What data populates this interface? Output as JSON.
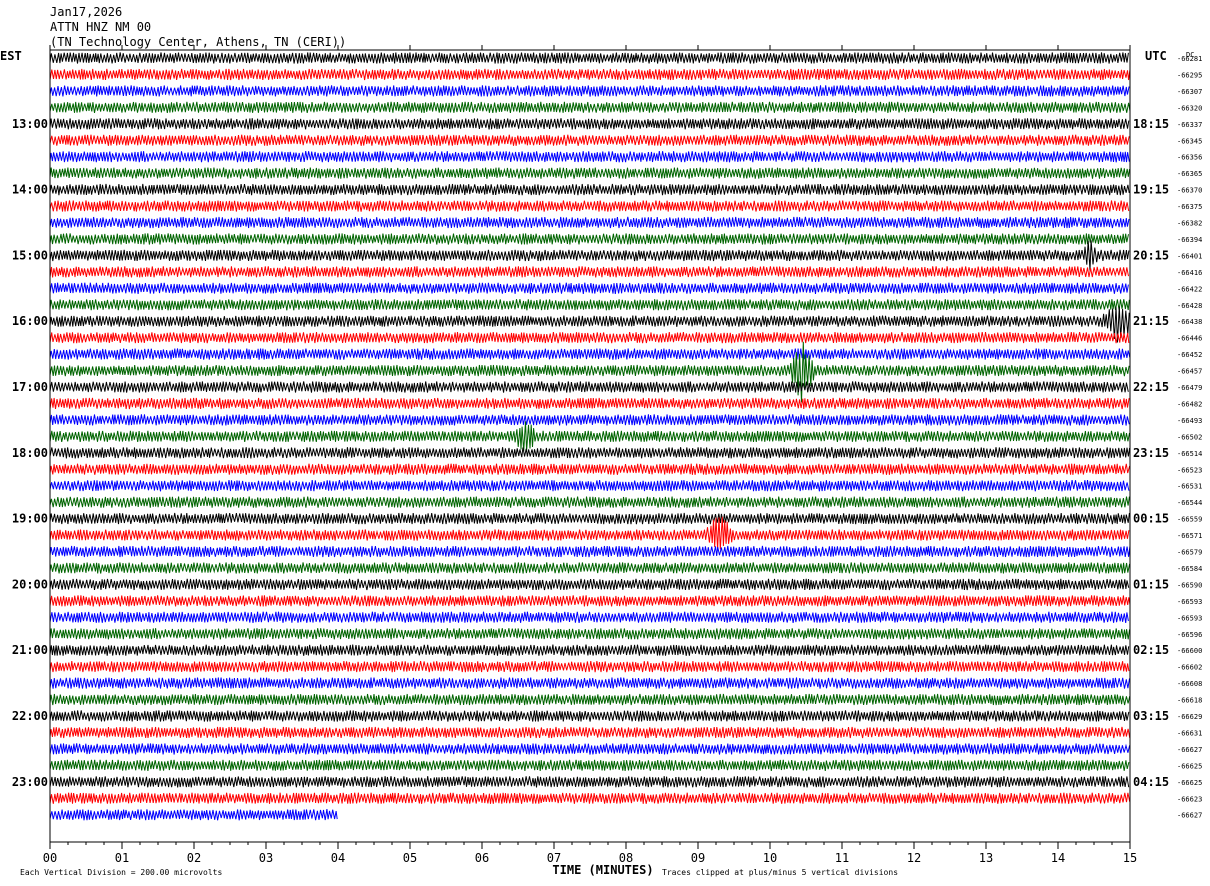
{
  "header": {
    "date": "Jan17,2026",
    "station": "ATTN HNZ NM 00",
    "location": "(TN Technology Center, Athens, TN (CERI))"
  },
  "chart_data": {
    "type": "line",
    "left_tz": "EST",
    "right_tz": "UTC",
    "dc_label": "DC",
    "xlabel": "TIME (MINUTES)",
    "xlim": [
      0,
      15
    ],
    "x_ticks": [
      "00",
      "01",
      "02",
      "03",
      "04",
      "05",
      "06",
      "07",
      "08",
      "09",
      "10",
      "11",
      "12",
      "13",
      "14",
      "15"
    ],
    "left_hour_labels": [
      "13:00",
      "14:00",
      "15:00",
      "16:00",
      "17:00",
      "18:00",
      "19:00",
      "20:00",
      "21:00",
      "22:00",
      "23:00"
    ],
    "right_hour_labels": [
      "18:15",
      "19:15",
      "20:15",
      "21:15",
      "22:15",
      "23:15",
      "00:15",
      "01:15",
      "02:15",
      "03:15",
      "04:15"
    ],
    "trace_colors": [
      "#000000",
      "#ff0000",
      "#0000ff",
      "#006400"
    ],
    "dc_offsets": [
      "-66281",
      "-66295",
      "-66307",
      "-66320",
      "-66337",
      "-66345",
      "-66356",
      "-66365",
      "-66370",
      "-66375",
      "-66382",
      "-66394",
      "-66401",
      "-66416",
      "-66422",
      "-66428",
      "-66438",
      "-66446",
      "-66452",
      "-66457",
      "-66479",
      "-66482",
      "-66493",
      "-66502",
      "-66514",
      "-66523",
      "-66531",
      "-66544",
      "-66559",
      "-66571",
      "-66579",
      "-66584",
      "-66590",
      "-66593",
      "-66593",
      "-66596",
      "-66600",
      "-66602",
      "-66608",
      "-66618",
      "-66629",
      "-66631",
      "-66627",
      "-66625",
      "-66625",
      "-66623",
      "-66627"
    ],
    "last_trace_end_minute": 4.0,
    "events": [
      {
        "trace": 19,
        "minute": 10.45,
        "amp": 2.6,
        "width": 0.18
      },
      {
        "trace": 16,
        "minute": 14.85,
        "amp": 1.6,
        "width": 0.25
      },
      {
        "trace": 23,
        "minute": 6.6,
        "amp": 1.4,
        "width": 0.15
      },
      {
        "trace": 29,
        "minute": 9.3,
        "amp": 1.5,
        "width": 0.2
      },
      {
        "trace": 12,
        "minute": 14.45,
        "amp": 1.3,
        "width": 0.1
      }
    ],
    "footer_left": "Each Vertical Division =  200.00 microvolts",
    "footer_right": "Traces clipped at plus/minus 5 vertical divisions"
  }
}
